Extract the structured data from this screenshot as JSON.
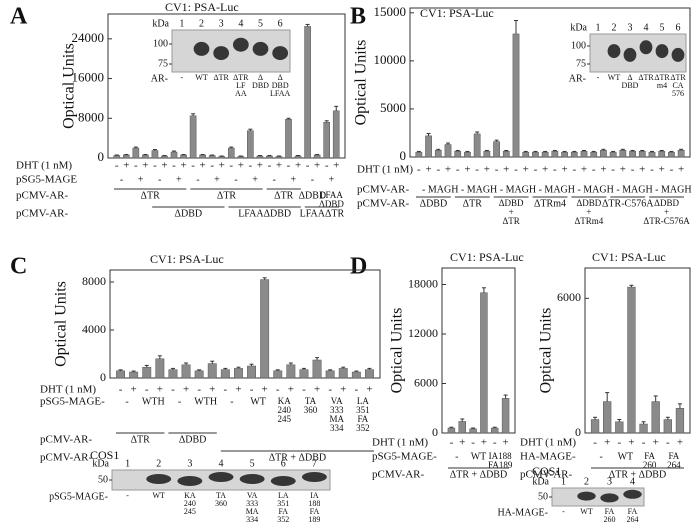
{
  "panels": [
    "A",
    "B",
    "C",
    "D"
  ],
  "chart_data": [
    {
      "type": "bar",
      "title": "CV1: PSA-Luc",
      "y_label": "Optical Units",
      "color": "#8a8a8a",
      "ylim": [
        0,
        29000
      ],
      "yticks": [
        0,
        8000,
        16000,
        24000
      ],
      "x_label": "DHT (1 nM)",
      "categories": [
        "-",
        "+",
        "-",
        "+",
        "-",
        "+",
        "-",
        "+",
        "-",
        "+",
        "-",
        "+",
        "-",
        "+",
        "-",
        "+",
        "-",
        "+",
        "-",
        "+",
        "-",
        "+",
        "-",
        "+"
      ],
      "values": [
        500,
        600,
        2000,
        600,
        1500,
        400,
        1200,
        600,
        8500,
        600,
        500,
        300,
        2000,
        300,
        5500,
        400,
        400,
        300,
        7800,
        400,
        26500,
        600,
        7200,
        9500
      ],
      "errors": [
        100,
        100,
        200,
        100,
        200,
        100,
        200,
        100,
        400,
        100,
        100,
        100,
        200,
        100,
        300,
        100,
        100,
        100,
        200,
        100,
        400,
        100,
        300,
        900
      ],
      "x_rows": [
        {
          "label": "pSG5-MAGE",
          "cells": [
            "-",
            null,
            "+",
            null,
            "-",
            null,
            "+",
            null,
            "-",
            null,
            "+",
            null,
            "-",
            null,
            "+",
            null,
            "-",
            null,
            "+",
            null,
            "-",
            null,
            "+",
            null
          ]
        },
        {
          "label": "pCMV-AR-",
          "cells": [
            "ΔTR",
            null,
            null,
            null,
            null,
            null,
            null,
            null,
            "ΔTR",
            null,
            null,
            null,
            null,
            null,
            null,
            null,
            "ΔTR",
            null,
            null,
            null,
            "ΔDBD",
            null,
            [
              "LFAA",
              "ΔDBD"
            ],
            null
          ]
        },
        {
          "label": "pCMV-AR-",
          "cells": [
            null,
            null,
            null,
            null,
            "ΔDBD",
            null,
            null,
            null,
            null,
            null,
            null,
            null,
            "LFAAΔDBD",
            null,
            null,
            null,
            null,
            null,
            null,
            null,
            "LFAAΔTR",
            null,
            null,
            null
          ]
        }
      ]
    },
    {
      "type": "bar",
      "title": "CV1: PSA-Luc",
      "y_label": "Optical Units",
      "color": "#8a8a8a",
      "ylim": [
        0,
        15500
      ],
      "yticks": [
        0,
        5000,
        10000,
        15000
      ],
      "x_label": "DHT (1 nM)",
      "categories": [
        "-",
        "+",
        "-",
        "+",
        "-",
        "+",
        "-",
        "+",
        "-",
        "+",
        "-",
        "+",
        "-",
        "+",
        "-",
        "+",
        "-",
        "+",
        "-",
        "+",
        "-",
        "+",
        "-",
        "+",
        "-",
        "+",
        "-",
        "+"
      ],
      "values": [
        500,
        2200,
        700,
        1300,
        600,
        500,
        2400,
        600,
        1600,
        600,
        12800,
        500,
        500,
        500,
        600,
        500,
        500,
        600,
        500,
        700,
        500,
        700,
        600,
        600,
        500,
        600,
        500,
        700
      ],
      "errors": [
        80,
        250,
        100,
        150,
        80,
        80,
        200,
        80,
        150,
        80,
        1400,
        80,
        80,
        80,
        80,
        80,
        80,
        80,
        80,
        100,
        80,
        100,
        80,
        80,
        80,
        80,
        80,
        100
      ],
      "x_rows": [
        {
          "label": "pCMV-AR-",
          "cells": [
            "-",
            null,
            "MAGH",
            null,
            "-",
            null,
            "MAGH",
            null,
            "-",
            null,
            "MAGH",
            null,
            "-",
            null,
            "MAGH",
            null,
            "-",
            null,
            "MAGH",
            null,
            "-",
            null,
            "MAGH",
            null,
            "-",
            null,
            "MAGH",
            null
          ]
        },
        {
          "label": "pCMV-AR-",
          "cells": [
            "ΔDBD",
            null,
            null,
            null,
            "ΔTR",
            null,
            null,
            null,
            [
              "ΔDBD",
              "+",
              "ΔTR"
            ],
            null,
            null,
            null,
            "ΔTRm4",
            null,
            null,
            null,
            [
              "ΔDBD",
              "+",
              "ΔTRm4"
            ],
            null,
            null,
            null,
            "ΔTR-C576A",
            null,
            null,
            null,
            [
              "ΔDBD",
              "+",
              "ΔTR-C576A"
            ],
            null,
            null,
            null
          ]
        }
      ]
    },
    {
      "type": "bar",
      "title": "CV1: PSA-Luc",
      "y_label": "Optical Units",
      "color": "#8a8a8a",
      "ylim": [
        0,
        9000
      ],
      "yticks": [
        0,
        4000,
        8000
      ],
      "x_label": "DHT (1 nM)",
      "categories": [
        "-",
        "+",
        "-",
        "+",
        "-",
        "+",
        "-",
        "+",
        "-",
        "+",
        "-",
        "+",
        "-",
        "+",
        "-",
        "+",
        "-",
        "+",
        "-",
        "+"
      ],
      "values": [
        600,
        500,
        900,
        1600,
        700,
        1100,
        600,
        1200,
        700,
        800,
        1000,
        8200,
        600,
        1100,
        700,
        1500,
        600,
        800,
        500,
        700
      ],
      "errors": [
        80,
        80,
        150,
        250,
        100,
        150,
        80,
        200,
        100,
        100,
        150,
        150,
        80,
        150,
        100,
        200,
        80,
        100,
        80,
        100
      ],
      "x_rows": [
        {
          "label": "pSG5-MAGE-",
          "cells": [
            "-",
            null,
            "WTH",
            null,
            "-",
            null,
            "WTH",
            null,
            "-",
            null,
            "WT",
            null,
            [
              "KA",
              "240",
              "245"
            ],
            null,
            [
              "TA",
              "360"
            ],
            null,
            [
              "VA",
              "333",
              "MA",
              "334"
            ],
            null,
            [
              "LA",
              "351",
              "FA",
              "352"
            ],
            null
          ]
        },
        {
          "label": "pCMV-AR-",
          "cells": [
            "ΔTR",
            null,
            null,
            null,
            "ΔDBD",
            null,
            null,
            null,
            null,
            null,
            null,
            null,
            null,
            null,
            null,
            null,
            null,
            null,
            null,
            null
          ]
        },
        {
          "label": "pCMV-AR-",
          "cells": [
            null,
            null,
            null,
            null,
            null,
            null,
            null,
            null,
            "ΔTR + ΔDBD",
            null,
            null,
            null,
            null,
            null,
            null,
            null,
            null,
            null,
            null,
            null
          ]
        }
      ]
    },
    {
      "type": "bar",
      "title": "CV1: PSA-Luc",
      "y_label": "Optical Units",
      "color": "#8a8a8a",
      "ylim": [
        0,
        20000
      ],
      "yticks": [
        0,
        6000,
        12000,
        18000
      ],
      "x_label": "DHT (1 nM)",
      "categories": [
        "-",
        "+",
        "-",
        "+",
        "-",
        "+"
      ],
      "values": [
        600,
        1400,
        500,
        17000,
        600,
        4200
      ],
      "errors": [
        100,
        300,
        100,
        600,
        100,
        400
      ],
      "x_rows": [
        {
          "label": "pSG5-MAGE-",
          "cells": [
            "-",
            null,
            "WT",
            null,
            [
              "IA188",
              "FA189"
            ],
            null
          ]
        },
        {
          "label": "pCMV-AR-",
          "cells": [
            "ΔTR + ΔDBD",
            null,
            null,
            null,
            null,
            null
          ]
        }
      ]
    },
    {
      "type": "bar",
      "title": "CV1: PSA-Luc",
      "y_label": "Optical Units",
      "color": "#8a8a8a",
      "ylim": [
        0,
        7350
      ],
      "yticks": [
        0,
        6000
      ],
      "x_label": "DHT (1 nM)",
      "categories": [
        "-",
        "+",
        "-",
        "+",
        "-",
        "+",
        "-",
        "+"
      ],
      "values": [
        600,
        1400,
        500,
        6500,
        400,
        1400,
        600,
        1100
      ],
      "errors": [
        100,
        400,
        100,
        80,
        100,
        250,
        100,
        200
      ],
      "x_rows": [
        {
          "label": "HA-MAGE-",
          "cells": [
            "-",
            null,
            "WT",
            null,
            [
              "FA",
              "260"
            ],
            null,
            [
              "FA",
              "264"
            ],
            null
          ]
        },
        {
          "label": "pCMV-AR-",
          "cells": [
            "ΔTR + ΔDBD",
            null,
            null,
            null,
            null,
            null,
            null,
            null
          ]
        }
      ]
    }
  ],
  "blots": [
    {
      "kda": "kDa",
      "lanes": [
        "1",
        "2",
        "3",
        "4",
        "5",
        "6"
      ],
      "markers": [
        100,
        75
      ],
      "row_label": "AR-",
      "lane_labels": [
        [
          "-"
        ],
        [
          "WT"
        ],
        [
          "ΔTR"
        ],
        [
          "ΔTR",
          "LF",
          "AA"
        ],
        [
          "Δ",
          "DBD"
        ],
        [
          "Δ",
          "DBD",
          "LFAA"
        ]
      ]
    },
    {
      "kda": "kDa",
      "lanes": [
        "1",
        "2",
        "3",
        "4",
        "5",
        "6"
      ],
      "markers": [
        100,
        75
      ],
      "row_label": "AR-",
      "lane_labels": [
        [
          "-"
        ],
        [
          "WT"
        ],
        [
          "Δ",
          "DBD"
        ],
        [
          "ΔTR"
        ],
        [
          "ΔTR",
          "m4"
        ],
        [
          "ΔTR",
          "CA",
          "576"
        ]
      ]
    },
    {
      "header": "COS1",
      "kda": "kDa",
      "lanes": [
        "1",
        "2",
        "3",
        "4",
        "5",
        "6",
        "7"
      ],
      "markers": [
        50
      ],
      "row_label": "pSG5-MAGE-",
      "lane_labels": [
        [
          "-"
        ],
        [
          "WT"
        ],
        [
          "KA",
          "240",
          "245"
        ],
        [
          "TA",
          "360"
        ],
        [
          "VA",
          "333",
          "MA",
          "334"
        ],
        [
          "LA",
          "351",
          "FA",
          "352"
        ],
        [
          "IA",
          "188",
          "FA",
          "189"
        ]
      ]
    },
    {
      "header": "COS1",
      "kda": "kDa",
      "lanes": [
        "1",
        "2",
        "3",
        "4"
      ],
      "markers": [
        50
      ],
      "row_label": "HA-MAGE-",
      "lane_labels": [
        [
          "-"
        ],
        [
          "WT"
        ],
        [
          "FA",
          "260"
        ],
        [
          "FA",
          "264"
        ]
      ]
    }
  ]
}
